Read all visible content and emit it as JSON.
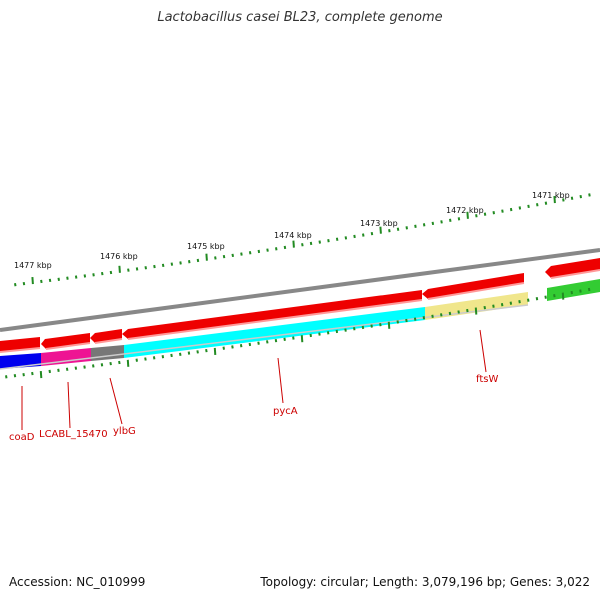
{
  "title": "Lactobacillus casei BL23, complete genome",
  "accession": "Accession: NC_010999",
  "summary": "Topology: circular; Length: 3,079,196 bp; Genes: 3,022",
  "kbp_labels": [
    "1477 kbp",
    "1476 kbp",
    "1475 kbp",
    "1474 kbp",
    "1473 kbp",
    "1472 kbp",
    "1471 kbp"
  ],
  "gene_labels": [
    "coaD",
    "LCABL_15470",
    "ylbG",
    "pycA",
    "ftsW"
  ],
  "colors": {
    "forward_cds": "#ee0000",
    "backbone": "#888888",
    "tick": "#228B22",
    "label": "#cc0000",
    "coaD": "#0000ee",
    "LCABL_15470": "#ee1493",
    "ylbG": "#777777",
    "pycA": "#00ffff",
    "ftsW": "#f0e68c",
    "green_feature": "#33cc33"
  }
}
